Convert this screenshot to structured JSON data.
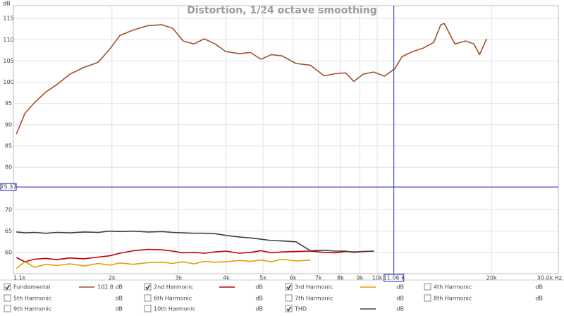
{
  "chart_data": {
    "type": "line",
    "title": "Distortion, 1/24 octave smoothing",
    "y_label": "dB",
    "x_scale": "log",
    "grid": true,
    "xlim": [
      1100,
      30000
    ],
    "ylim": [
      55,
      118
    ],
    "xticks": [
      {
        "value": 1100,
        "label": "1.1k"
      },
      {
        "value": 2000,
        "label": "2k"
      },
      {
        "value": 3000,
        "label": "3k"
      },
      {
        "value": 4000,
        "label": "4k"
      },
      {
        "value": 5000,
        "label": "5k"
      },
      {
        "value": 6000,
        "label": "6k"
      },
      {
        "value": 7000,
        "label": "7k"
      },
      {
        "value": 8000,
        "label": "8k"
      },
      {
        "value": 9000,
        "label": "9k"
      },
      {
        "value": 10000,
        "label": "10k"
      },
      {
        "value": 20000,
        "label": "20k"
      },
      {
        "value": 30000,
        "label": "30.0k Hz"
      }
    ],
    "yticks": [
      60,
      65,
      70,
      80,
      85,
      90,
      95,
      100,
      105,
      110,
      115
    ],
    "cursor": {
      "x": {
        "value": 11060,
        "label": "11.06 k"
      },
      "y": {
        "value": 75.37,
        "label": "75.37"
      },
      "color": "#2020c0"
    },
    "x": [
      1120,
      1180,
      1250,
      1340,
      1430,
      1550,
      1690,
      1840,
      1970,
      2100,
      2280,
      2490,
      2710,
      2890,
      3080,
      3290,
      3500,
      3740,
      3990,
      4340,
      4630,
      4940,
      5260,
      5610,
      6110,
      6660,
      7250,
      7740,
      8250,
      8680,
      9180,
      9790,
      10440,
      11130,
      11620,
      12390,
      13210,
      14090,
      14700,
      15020,
      16010,
      17080,
      17970,
      18600,
      19420
    ],
    "series": [
      {
        "name": "Fundamental",
        "color": "#a0522d",
        "checked": true,
        "readout": "102.8 dB",
        "values": [
          87.8,
          92.7,
          95.2,
          97.7,
          99.4,
          101.9,
          103.5,
          104.7,
          107.7,
          111.0,
          112.3,
          113.3,
          113.5,
          112.7,
          109.7,
          109.0,
          110.2,
          109.0,
          107.2,
          106.7,
          107.0,
          105.4,
          106.5,
          106.2,
          104.4,
          104.0,
          101.5,
          102.0,
          102.2,
          100.2,
          101.9,
          102.4,
          101.4,
          103.2,
          106.0,
          107.2,
          108.0,
          109.4,
          113.5,
          113.8,
          109.0,
          109.7,
          109.0,
          106.5,
          110.2
        ]
      },
      {
        "name": "2nd Harmonic",
        "color": "#c00000",
        "checked": true,
        "readout": "dB",
        "values": [
          58.8,
          57.8,
          58.4,
          58.6,
          58.3,
          58.7,
          58.5,
          58.9,
          59.2,
          59.8,
          60.4,
          60.7,
          60.6,
          60.3,
          59.9,
          60.0,
          59.8,
          60.1,
          60.3,
          59.8,
          60.0,
          60.4,
          59.9,
          60.1,
          60.2,
          60.3,
          60.0,
          59.9,
          60.2,
          60.1,
          60.2,
          60.3,
          null,
          null,
          null,
          null,
          null,
          null,
          null,
          null,
          null,
          null,
          null,
          null,
          null
        ]
      },
      {
        "name": "3rd Harmonic",
        "color": "#e0a000",
        "checked": true,
        "readout": "dB",
        "values": [
          56.2,
          57.8,
          56.5,
          57.2,
          56.9,
          57.3,
          56.8,
          57.4,
          57.0,
          57.5,
          57.2,
          57.6,
          57.7,
          57.4,
          57.8,
          57.3,
          57.9,
          57.7,
          57.8,
          58.1,
          57.9,
          58.2,
          57.8,
          58.4,
          58.0,
          58.2,
          null,
          null,
          null,
          null,
          null,
          null,
          null,
          null,
          null,
          null,
          null,
          null,
          null,
          null,
          null,
          null,
          null,
          null,
          null
        ]
      },
      {
        "name": "THD",
        "color": "#404040",
        "checked": true,
        "readout": "dB",
        "values": [
          64.8,
          64.6,
          64.7,
          64.5,
          64.7,
          64.6,
          64.8,
          64.7,
          65.0,
          64.9,
          65.0,
          64.8,
          64.9,
          64.7,
          64.6,
          64.5,
          64.5,
          64.4,
          64.0,
          63.6,
          63.4,
          63.1,
          62.8,
          62.7,
          62.5,
          60.4,
          60.5,
          60.3,
          60.3,
          60.0,
          60.2,
          60.3,
          null,
          null,
          null,
          null,
          null,
          null,
          null,
          null,
          null,
          null,
          null,
          null,
          null
        ]
      }
    ],
    "inactive_traces": [
      {
        "name": "4th Harmonic",
        "color": "#c8c800",
        "readout": "dB"
      },
      {
        "name": "5th Harmonic",
        "color": "#98c040",
        "readout": "dB"
      },
      {
        "name": "6th Harmonic",
        "color": "#4080d0",
        "readout": "dB"
      },
      {
        "name": "7th Harmonic",
        "color": "#e080e0",
        "readout": "dB"
      },
      {
        "name": "8th Harmonic",
        "color": "#909090",
        "readout": "dB"
      },
      {
        "name": "9th Harmonic",
        "color": "#20b0c8",
        "readout": "dB"
      },
      {
        "name": "10th Harmonic",
        "color": "#808000",
        "readout": "dB"
      }
    ]
  }
}
